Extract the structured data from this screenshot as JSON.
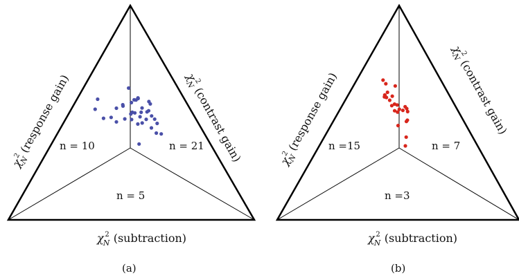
{
  "chart_data": [
    {
      "type": "ternary-scatter",
      "panel_label": "(a)",
      "point_color": "#4a50a8",
      "vertex_labels": {
        "left": {
          "chi": "χ",
          "sub": "N",
          "sup": "2",
          "text": "(response gain)"
        },
        "right": {
          "chi": "χ",
          "sub": "N",
          "sup": "2",
          "text": "(contrast gain)"
        },
        "bottom": {
          "chi": "χ",
          "sub": "N",
          "sup": "2",
          "text": "(subtraction)"
        }
      },
      "region_counts": {
        "response": "n = 10",
        "contrast": "n = 21",
        "subtraction": "n = 5"
      },
      "points": [
        [
          0.253,
          0.253
        ],
        [
          0.266,
          0.203
        ],
        [
          0.264,
          0.199
        ],
        [
          0.243,
          0.255
        ],
        [
          0.186,
          0.245
        ],
        [
          0.234,
          0.267
        ],
        [
          0.187,
          0.247
        ],
        [
          0.248,
          0.305
        ],
        [
          0.193,
          0.285
        ],
        [
          0.207,
          0.291
        ],
        [
          0.182,
          0.314
        ],
        [
          0.228,
          0.32
        ],
        [
          0.173,
          0.318
        ],
        [
          0.173,
          0.342
        ],
        [
          0.168,
          0.362
        ],
        [
          0.168,
          0.382
        ],
        [
          0.194,
          0.401
        ],
        [
          0.176,
          0.423
        ],
        [
          0.298,
          0.181
        ],
        [
          0.33,
          0.213
        ],
        [
          0.29,
          0.356
        ],
        [
          0.222,
          0.297
        ],
        [
          0.203,
          0.328
        ],
        [
          0.202,
          0.369
        ],
        [
          0.15,
          0.309
        ],
        [
          0.199,
          0.242
        ],
        [
          0.263,
          0.269
        ],
        [
          0.15,
          0.298
        ],
        [
          0.289,
          0.24
        ],
        [
          0.224,
          0.229
        ],
        [
          0.374,
          0.152
        ],
        [
          0.387,
          0.097
        ],
        [
          0.353,
          0.084
        ],
        [
          0.201,
          0.184
        ],
        [
          0.206,
          0.234
        ],
        [
          0.341,
          0.181
        ]
      ]
    },
    {
      "type": "ternary-scatter",
      "panel_label": "(b)",
      "point_color": "#d8261c",
      "vertex_labels": {
        "left": {
          "chi": "χ",
          "sub": "N",
          "sup": "2",
          "text": "(response gain)"
        },
        "right": {
          "chi": "χ",
          "sub": "N",
          "sup": "2",
          "text": "(contrast gain)"
        },
        "bottom": {
          "chi": "χ",
          "sub": "N",
          "sup": "2",
          "text": "(subtraction)"
        }
      },
      "region_counts": {
        "response": "n =15",
        "contrast": "n = 7",
        "subtraction": "n =3"
      },
      "points": [
        [
          0.231,
          0.304
        ],
        [
          0.238,
          0.303
        ],
        [
          0.299,
          0.356
        ],
        [
          0.275,
          0.339
        ],
        [
          0.209,
          0.263
        ],
        [
          0.207,
          0.274
        ],
        [
          0.21,
          0.285
        ],
        [
          0.227,
          0.262
        ],
        [
          0.239,
          0.245
        ],
        [
          0.253,
          0.244
        ],
        [
          0.238,
          0.226
        ],
        [
          0.247,
          0.213
        ],
        [
          0.262,
          0.205
        ],
        [
          0.262,
          0.229
        ],
        [
          0.258,
          0.184
        ],
        [
          0.265,
          0.164
        ],
        [
          0.238,
          0.185
        ],
        [
          0.236,
          0.129
        ],
        [
          0.202,
          0.173
        ],
        [
          0.239,
          0.109
        ],
        [
          0.249,
          0.156
        ],
        [
          0.266,
          0.151
        ],
        [
          0.266,
          0.152
        ],
        [
          0.272,
          0.154
        ],
        [
          0.282,
          0.278
        ]
      ]
    }
  ]
}
